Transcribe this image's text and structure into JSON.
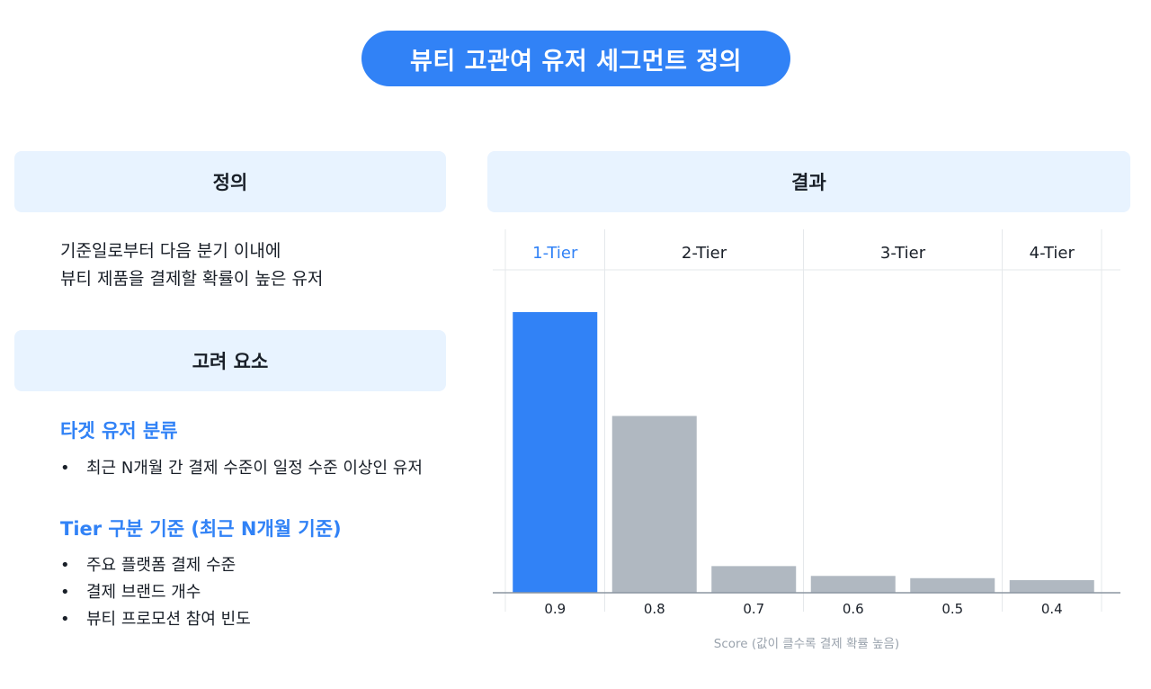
{
  "page": {
    "title": "뷰티 고관여 유저 세그먼트 정의"
  },
  "left": {
    "definition_header": "정의",
    "definition_lines": [
      "기준일로부터 다음 분기 이내에",
      "뷰티 제품을 결제할 확률이 높은 유저"
    ],
    "factors_header": "고려 요소",
    "target_title": "타겟 유저 분류",
    "target_bullets": [
      "최근 N개월 간 결제 수준이 일정 수준 이상인 유저"
    ],
    "tier_title": "Tier 구분 기준 (최근 N개월 기준)",
    "tier_bullets": [
      "주요 플랫폼 결제 수준",
      "결제 브랜드 개수",
      "뷰티 프로모션 참여 빈도"
    ],
    "bullet_char": "•"
  },
  "right": {
    "result_header": "결과"
  },
  "colors": {
    "accent": "#3182f6",
    "gray_bar": "#b0b8c1",
    "header_bg": "#e8f3ff"
  },
  "chart_data": {
    "type": "bar",
    "categories": [
      "0.9",
      "0.8",
      "0.7",
      "0.6",
      "0.5",
      "0.4"
    ],
    "values": [
      100,
      63,
      9.5,
      6,
      5.2,
      4.5
    ],
    "tiers": [
      "1-Tier",
      "2-Tier",
      "3-Tier",
      "4-Tier"
    ],
    "tier_of_bar": [
      0,
      1,
      1,
      2,
      2,
      3
    ],
    "highlight_tier": 0,
    "xlabel": "Score (값이 클수록 결제 확률 높음)",
    "ylabel": "",
    "ylim": [
      0,
      100
    ],
    "grid": false
  }
}
